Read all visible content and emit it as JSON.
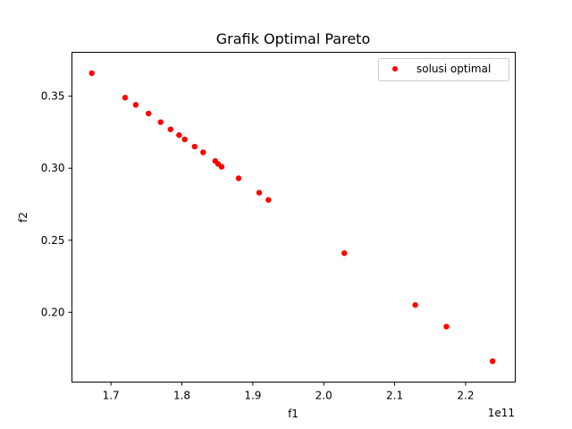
{
  "chart_data": {
    "type": "scatter",
    "title": "Grafik Optimal Pareto",
    "xlabel": "f1",
    "ylabel": "f2",
    "x_offset_label": "1e11",
    "x_scale": 100000000000.0,
    "xlim": [
      1.645,
      2.27
    ],
    "ylim": [
      0.1515,
      0.3805
    ],
    "xticks": [
      1.7,
      1.8,
      1.9,
      2.0,
      2.1,
      2.2
    ],
    "yticks": [
      0.2,
      0.25,
      0.3,
      0.35
    ],
    "grid": false,
    "legend_position": "top-right",
    "series": [
      {
        "name": "solusi optimal",
        "color": "#ff0000",
        "marker": "circle",
        "points": [
          {
            "x": 1.673,
            "y": 0.366
          },
          {
            "x": 1.72,
            "y": 0.349
          },
          {
            "x": 1.735,
            "y": 0.344
          },
          {
            "x": 1.753,
            "y": 0.338
          },
          {
            "x": 1.77,
            "y": 0.332
          },
          {
            "x": 1.784,
            "y": 0.327
          },
          {
            "x": 1.796,
            "y": 0.323
          },
          {
            "x": 1.804,
            "y": 0.32
          },
          {
            "x": 1.818,
            "y": 0.315
          },
          {
            "x": 1.83,
            "y": 0.311
          },
          {
            "x": 1.847,
            "y": 0.305
          },
          {
            "x": 1.851,
            "y": 0.303
          },
          {
            "x": 1.856,
            "y": 0.301
          },
          {
            "x": 1.88,
            "y": 0.293
          },
          {
            "x": 1.909,
            "y": 0.283
          },
          {
            "x": 1.922,
            "y": 0.278
          },
          {
            "x": 2.029,
            "y": 0.241
          },
          {
            "x": 2.129,
            "y": 0.205
          },
          {
            "x": 2.173,
            "y": 0.19
          },
          {
            "x": 2.238,
            "y": 0.166
          }
        ]
      }
    ]
  }
}
